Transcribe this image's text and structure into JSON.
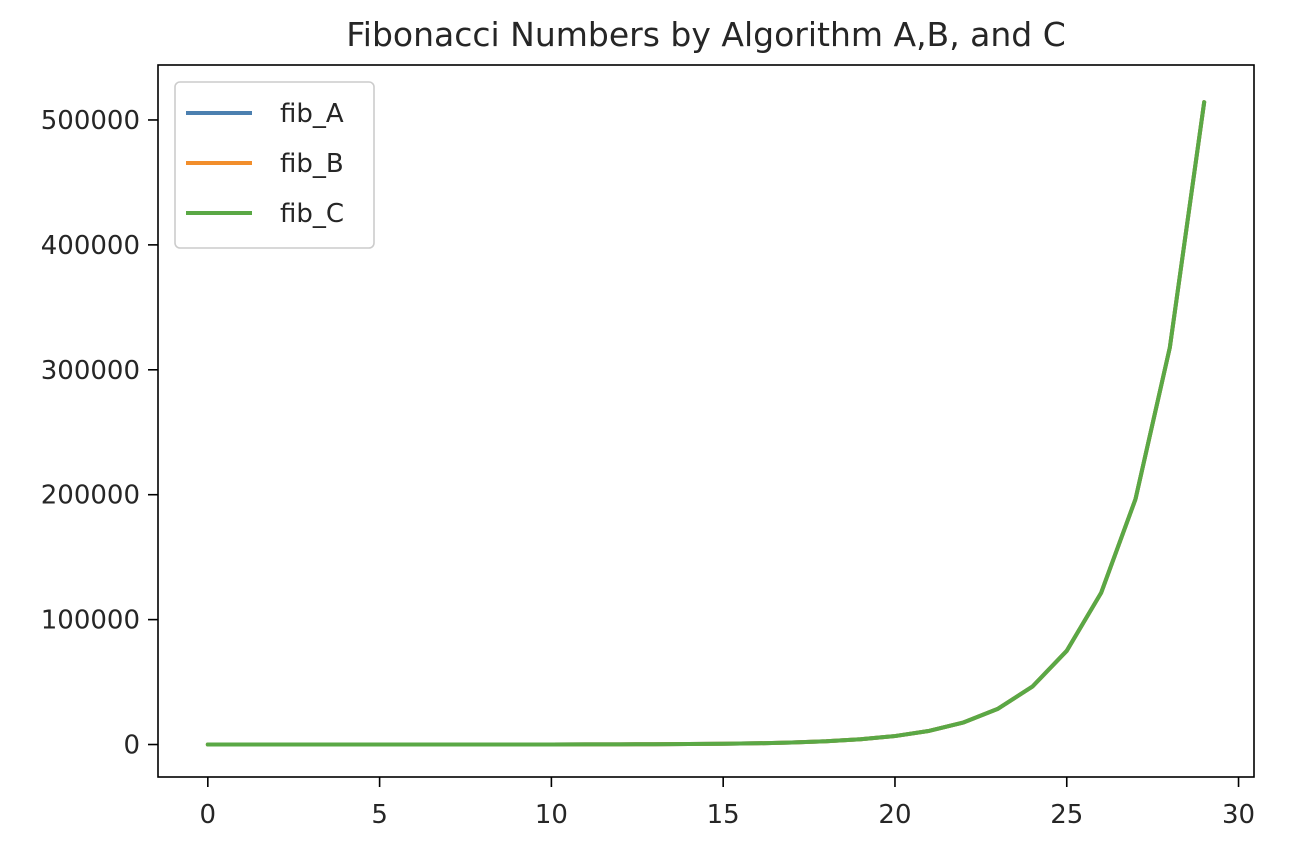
{
  "chart_data": {
    "type": "line",
    "title": "Fibonacci Numbers by Algorithm A,B, and C",
    "xlabel": "",
    "ylabel": "",
    "xlim": [
      -1.45,
      30.45
    ],
    "ylim": [
      -26000,
      544000
    ],
    "xticks": [
      0,
      5,
      10,
      15,
      20,
      25,
      30
    ],
    "yticks": [
      0,
      100000,
      200000,
      300000,
      400000,
      500000
    ],
    "grid": false,
    "legend": "top-left",
    "x": [
      0,
      1,
      2,
      3,
      4,
      5,
      6,
      7,
      8,
      9,
      10,
      11,
      12,
      13,
      14,
      15,
      16,
      17,
      18,
      19,
      20,
      21,
      22,
      23,
      24,
      25,
      26,
      27,
      28,
      29
    ],
    "series": [
      {
        "name": "fib_A",
        "color": "#4c80b0",
        "values": [
          0,
          1,
          1,
          2,
          3,
          5,
          8,
          13,
          21,
          34,
          55,
          89,
          144,
          233,
          377,
          610,
          987,
          1597,
          2584,
          4181,
          6765,
          10946,
          17711,
          28657,
          46368,
          75025,
          121393,
          196418,
          317811,
          514229
        ]
      },
      {
        "name": "fib_B",
        "color": "#f28e2b",
        "values": [
          0,
          1,
          1,
          2,
          3,
          5,
          8,
          13,
          21,
          34,
          55,
          89,
          144,
          233,
          377,
          610,
          987,
          1597,
          2584,
          4181,
          6765,
          10946,
          17711,
          28657,
          46368,
          75025,
          121393,
          196418,
          317811,
          514229
        ]
      },
      {
        "name": "fib_C",
        "color": "#5aa845",
        "values": [
          0,
          1,
          1,
          2,
          3,
          5,
          8,
          13,
          21,
          34,
          55,
          89,
          144,
          233,
          377,
          610,
          987,
          1597,
          2584,
          4181,
          6765,
          10946,
          17711,
          28657,
          46368,
          75025,
          121393,
          196418,
          317811,
          514229
        ]
      }
    ]
  }
}
